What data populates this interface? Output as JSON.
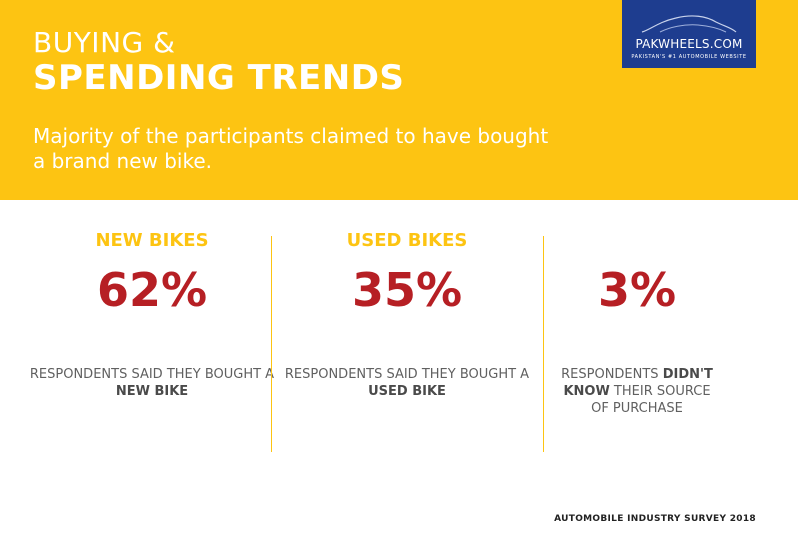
{
  "header": {
    "title_line1": "BUYING &",
    "title_line2": "SPENDING TRENDS",
    "subtitle": "Majority of the participants claimed to have bought a brand new bike."
  },
  "logo": {
    "name": "PAKWHEELS.COM",
    "tagline": "PAKISTAN'S #1 AUTOMOBILE WEBSITE"
  },
  "stats": [
    {
      "heading": "NEW BIKES",
      "percent": "62%",
      "desc_part1": "RESPONDENTS SAID THEY BOUGHT A ",
      "desc_bold": "NEW BIKE",
      "desc_part2": ""
    },
    {
      "heading": "USED BIKES",
      "percent": "35%",
      "desc_part1": "RESPONDENTS SAID THEY BOUGHT A ",
      "desc_bold": "USED BIKE",
      "desc_part2": ""
    },
    {
      "heading": "",
      "percent": "3%",
      "desc_part1": "RESPONDENTS ",
      "desc_bold": "DIDN'T KNOW",
      "desc_part2": " THEIR SOURCE OF PURCHASE"
    }
  ],
  "footer": {
    "label": "AUTOMOBILE INDUSTRY SURVEY 2018"
  },
  "colors": {
    "header_bg": "#fdc412",
    "accent_red": "#b61f24",
    "logo_bg": "#1e3d8f",
    "text_gray": "#606060"
  }
}
